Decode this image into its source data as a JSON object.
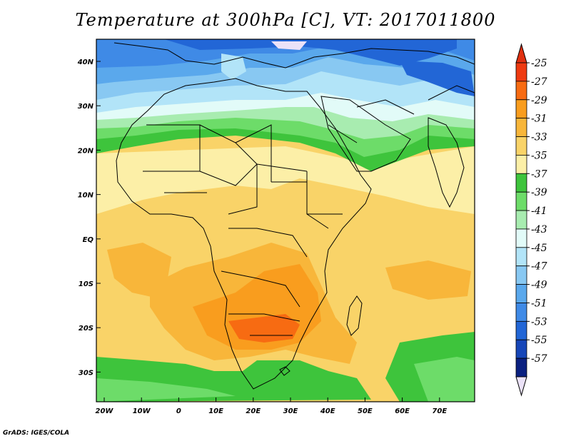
{
  "title": "Temperature at 300hPa [C], VT: 2017011800",
  "credit": "GrADS: IGES/COLA",
  "lon_ticks": [
    "20W",
    "10W",
    "0",
    "10E",
    "20E",
    "30E",
    "40E",
    "50E",
    "60E",
    "70E"
  ],
  "lat_ticks": [
    "40N",
    "30N",
    "20N",
    "10N",
    "EQ",
    "10S",
    "20S",
    "30S"
  ],
  "colorbar": {
    "labels": [
      "-25",
      "-27",
      "-29",
      "-31",
      "-33",
      "-35",
      "-37",
      "-39",
      "-41",
      "-43",
      "-45",
      "-47",
      "-49",
      "-51",
      "-53",
      "-55",
      "-57"
    ],
    "colors": [
      "#ee3a10",
      "#f76b12",
      "#f99d1e",
      "#f8b63a",
      "#f9d368",
      "#fcefa7",
      "#3ec43c",
      "#6ddc69",
      "#a8ecb0",
      "#e2fbf8",
      "#b2e4f8",
      "#88c8f2",
      "#5aa8ec",
      "#3f8ae6",
      "#2266d6",
      "#1646b8",
      "#0a2080"
    ],
    "top_arrow_color": "#e03010",
    "bottom_arrow_color": "#ebe2f8"
  },
  "colors": {
    "background_field": "#f9d368",
    "border": "#000000"
  }
}
